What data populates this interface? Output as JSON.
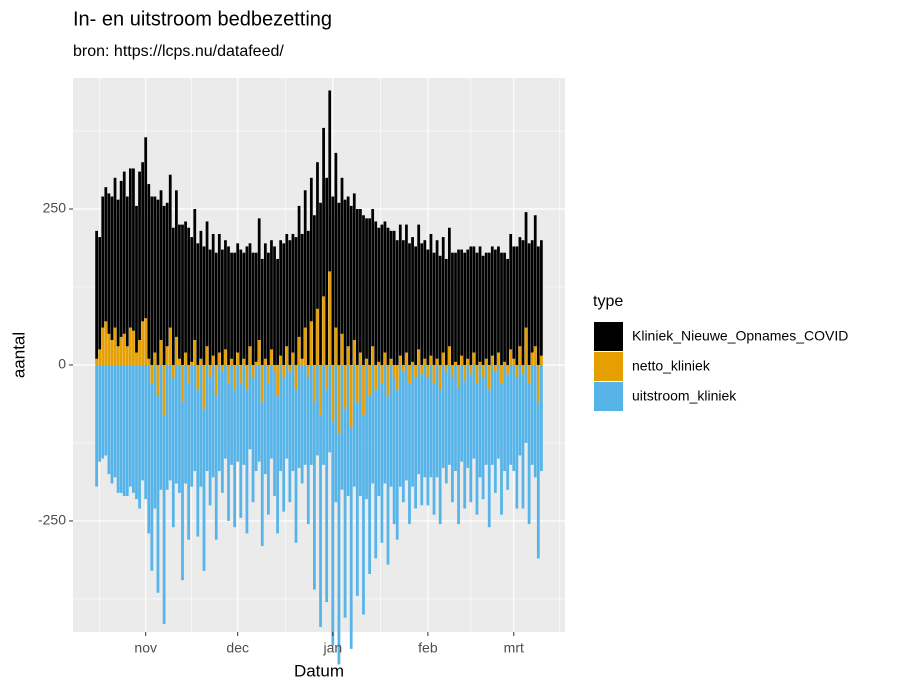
{
  "chart_data": {
    "type": "bar",
    "title": "In- en uitstroom bedbezetting",
    "subtitle": "bron: https://lcps.nu/datafeed/",
    "x_label": "Datum",
    "y_label": "aantal",
    "legend_title": "type",
    "legend_position": "right",
    "grid": true,
    "stacked": true,
    "categories": [
      null,
      null,
      null,
      null,
      null,
      null,
      null,
      null,
      null,
      null,
      null,
      null,
      null,
      null,
      null,
      null,
      "nov",
      null,
      null,
      null,
      null,
      null,
      null,
      null,
      null,
      null,
      null,
      null,
      null,
      null,
      null,
      null,
      null,
      null,
      null,
      null,
      null,
      null,
      null,
      null,
      null,
      null,
      null,
      null,
      null,
      null,
      "dec",
      null,
      null,
      null,
      null,
      null,
      null,
      null,
      null,
      null,
      null,
      null,
      null,
      null,
      null,
      null,
      null,
      null,
      null,
      null,
      null,
      null,
      null,
      null,
      null,
      null,
      null,
      null,
      null,
      null,
      null,
      "jan",
      null,
      null,
      null,
      null,
      null,
      null,
      null,
      null,
      null,
      null,
      null,
      null,
      null,
      null,
      null,
      null,
      null,
      null,
      null,
      null,
      null,
      null,
      null,
      null,
      null,
      null,
      null,
      null,
      null,
      null,
      "feb",
      null,
      null,
      null,
      null,
      null,
      null,
      null,
      null,
      null,
      null,
      null,
      null,
      null,
      null,
      null,
      null,
      null,
      null,
      null,
      null,
      null,
      null,
      null,
      null,
      null,
      null,
      null,
      "mrt",
      null,
      null,
      null,
      null,
      null,
      null,
      null,
      null,
      null
    ],
    "series": [
      {
        "name": "Kliniek_Nieuwe_Opnames_COVID",
        "color": "#000000",
        "values": [
          205,
          180,
          210,
          215,
          225,
          230,
          240,
          235,
          250,
          260,
          240,
          255,
          260,
          235,
          270,
          255,
          290,
          280,
          270,
          250,
          265,
          240,
          255,
          230,
          245,
          220,
          235,
          215,
          225,
          210,
          220,
          200,
          210,
          195,
          205,
          190,
          200,
          185,
          195,
          180,
          190,
          185,
          175,
          190,
          170,
          180,
          175,
          185,
          170,
          190,
          165,
          180,
          175,
          195,
          170,
          185,
          180,
          175,
          190,
          170,
          185,
          195,
          180,
          200,
          190,
          205,
          210,
          200,
          220,
          215,
          230,
          240,
          235,
          260,
          270,
          300,
          290,
          270,
          280,
          260,
          250,
          265,
          240,
          255,
          235,
          250,
          230,
          240,
          225,
          235,
          220,
          230,
          215,
          225,
          210,
          220,
          205,
          215,
          200,
          210,
          200,
          205,
          195,
          200,
          190,
          200,
          195,
          190,
          185,
          195,
          180,
          190,
          175,
          185,
          170,
          190,
          180,
          175,
          185,
          170,
          180,
          175,
          190,
          170,
          180,
          185,
          175,
          170,
          180,
          175,
          185,
          170,
          180,
          175,
          170,
          185,
          180,
          190,
          175,
          200,
          185,
          195,
          180,
          210,
          190,
          185
        ]
      },
      {
        "name": "netto_kliniek",
        "color": "#E69F00",
        "values": [
          10,
          25,
          60,
          70,
          50,
          40,
          60,
          30,
          45,
          50,
          30,
          60,
          55,
          20,
          40,
          70,
          75,
          10,
          -30,
          20,
          -50,
          40,
          -80,
          30,
          60,
          -20,
          45,
          10,
          -60,
          20,
          -30,
          5,
          40,
          -40,
          10,
          -70,
          30,
          -20,
          15,
          -50,
          20,
          -10,
          25,
          -30,
          10,
          -40,
          20,
          -30,
          10,
          -40,
          30,
          -20,
          5,
          40,
          -60,
          10,
          -30,
          25,
          -10,
          -50,
          15,
          -20,
          30,
          -10,
          20,
          -40,
          45,
          10,
          60,
          -20,
          70,
          -60,
          90,
          -80,
          110,
          -40,
          150,
          -90,
          60,
          -110,
          50,
          -70,
          30,
          -100,
          40,
          -60,
          20,
          -80,
          10,
          -50,
          30,
          -40,
          5,
          -30,
          20,
          -50,
          10,
          -20,
          -40,
          15,
          -10,
          20,
          -30,
          5,
          -20,
          25,
          -15,
          10,
          -20,
          15,
          -30,
          10,
          -40,
          20,
          -10,
          30,
          -20,
          5,
          -35,
          15,
          -25,
          10,
          -15,
          20,
          -30,
          5,
          -20,
          10,
          -40,
          15,
          -10,
          20,
          -30,
          5,
          -15,
          25,
          10,
          -20,
          30,
          -15,
          60,
          -30,
          20,
          30,
          -60,
          15
        ]
      },
      {
        "name": "uitstroom_kliniek",
        "color": "#56B4E9",
        "values": [
          -195,
          -155,
          -150,
          -145,
          -175,
          -190,
          -180,
          -205,
          -205,
          -210,
          -210,
          -195,
          -205,
          -215,
          -230,
          -185,
          -215,
          -270,
          -300,
          -230,
          -315,
          -200,
          -335,
          -200,
          -185,
          -240,
          -190,
          -205,
          -285,
          -190,
          -250,
          -195,
          -170,
          -235,
          -195,
          -260,
          -170,
          -205,
          -180,
          -230,
          -170,
          -195,
          -150,
          -220,
          -160,
          -220,
          -155,
          -215,
          -160,
          -230,
          -135,
          -200,
          -170,
          -155,
          -230,
          -175,
          -210,
          -150,
          -200,
          -220,
          -170,
          -215,
          -150,
          -210,
          -170,
          -245,
          -165,
          -190,
          -160,
          -235,
          -160,
          -300,
          -145,
          -340,
          -160,
          -340,
          -140,
          -360,
          -220,
          -370,
          -200,
          -335,
          -210,
          -355,
          -195,
          -310,
          -210,
          -320,
          -215,
          -285,
          -190,
          -270,
          -210,
          -255,
          -190,
          -270,
          -195,
          -235,
          -240,
          -195,
          -210,
          -185,
          -225,
          -195,
          -210,
          -175,
          -210,
          -180,
          -205,
          -180,
          -210,
          -180,
          -215,
          -165,
          -180,
          -160,
          -200,
          -170,
          -220,
          -155,
          -205,
          -165,
          -205,
          -150,
          -210,
          -180,
          -195,
          -160,
          -220,
          -160,
          -195,
          -150,
          -210,
          -170,
          -185,
          -160,
          -170,
          -210,
          -145,
          -215,
          -125,
          -225,
          -160,
          -180,
          -250,
          -170
        ]
      }
    ],
    "ylim": [
      -428,
      460
    ],
    "yticks": [
      -250,
      0,
      250
    ]
  }
}
